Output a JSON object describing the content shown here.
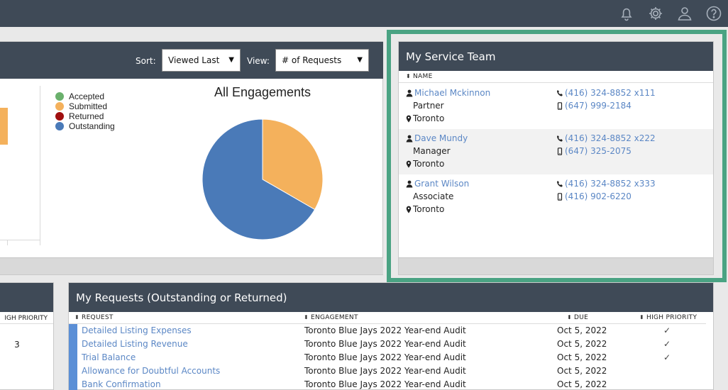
{
  "colors": {
    "topbar": "#3f4a57",
    "accent_outline": "#4aa383",
    "link": "#5b87c5"
  },
  "topbar": {
    "icons": [
      "bell-icon",
      "gear-icon",
      "user-icon",
      "help-icon"
    ]
  },
  "engagements_panel": {
    "sort_label": "Sort:",
    "sort_value": "Viewed Last",
    "view_label": "View:",
    "view_value": "# of Requests"
  },
  "legend": [
    {
      "label": "Accepted",
      "color": "#6ab06c"
    },
    {
      "label": "Submitted",
      "color": "#f4b15c"
    },
    {
      "label": "Returned",
      "color": "#a00f0f"
    },
    {
      "label": "Outstanding",
      "color": "#4a7ab8"
    }
  ],
  "chart_data": {
    "type": "pie",
    "title": "All Engagements",
    "labels": [
      "Accepted",
      "Submitted",
      "Returned",
      "Outstanding"
    ],
    "values": [
      0,
      1,
      0,
      2
    ],
    "colors": [
      "#6ab06c",
      "#f4b15c",
      "#a00f0f",
      "#4a7ab8"
    ],
    "legend": "left"
  },
  "service_team": {
    "title": "My Service Team",
    "column_header": "NAME",
    "members": [
      {
        "name": "Michael Mckinnon",
        "role": "Partner",
        "location": "Toronto",
        "phone": "(416) 324-8852 x111",
        "mobile": "(647) 999-2184"
      },
      {
        "name": "Dave Mundy",
        "role": "Manager",
        "location": "Toronto",
        "phone": "(416) 324-8852 x222",
        "mobile": "(647) 325-2075"
      },
      {
        "name": "Grant Wilson",
        "role": "Associate",
        "location": "Toronto",
        "phone": "(416) 324-8852 x333",
        "mobile": "(416) 902-6220"
      }
    ]
  },
  "priority_panel": {
    "column_header": "IGH PRIORITY",
    "value": "3"
  },
  "requests": {
    "title": "My Requests (Outstanding or Returned)",
    "columns": {
      "request": "REQUEST",
      "engagement": "ENGAGEMENT",
      "due": "DUE",
      "high_priority": "HIGH PRIORITY"
    },
    "rows": [
      {
        "request": "Detailed Listing Expenses",
        "engagement": "Toronto Blue Jays 2022 Year-end Audit",
        "due": "Oct 5, 2022",
        "high_priority": "✓"
      },
      {
        "request": "Detailed Listing Revenue",
        "engagement": "Toronto Blue Jays 2022 Year-end Audit",
        "due": "Oct 5, 2022",
        "high_priority": "✓"
      },
      {
        "request": "Trial Balance",
        "engagement": "Toronto Blue Jays 2022 Year-end Audit",
        "due": "Oct 5, 2022",
        "high_priority": "✓"
      },
      {
        "request": "Allowance for Doubtful Accounts",
        "engagement": "Toronto Blue Jays 2022 Year-end Audit",
        "due": "Oct 5, 2022",
        "high_priority": ""
      },
      {
        "request": "Bank Confirmation",
        "engagement": "Toronto Blue Jays 2022 Year-end Audit",
        "due": "Oct 5, 2022",
        "high_priority": ""
      }
    ]
  }
}
